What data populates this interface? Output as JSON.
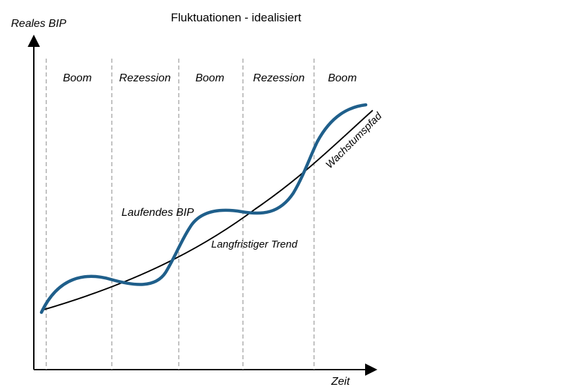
{
  "title": "Fluktuationen - idealisiert",
  "axes": {
    "y_label": "Reales BIP",
    "x_label": "Zeit"
  },
  "phases": [
    "Boom",
    "Rezession",
    "Boom",
    "Rezession",
    "Boom"
  ],
  "curve_labels": {
    "actual_gdp": "Laufendes BIP",
    "trend": "Langfristiger Trend",
    "growth_path": "Wachstumspfad"
  },
  "colors": {
    "actual_gdp": "#1f5f8b",
    "trend": "#000000",
    "phase_divider": "#9a9a9a"
  }
}
